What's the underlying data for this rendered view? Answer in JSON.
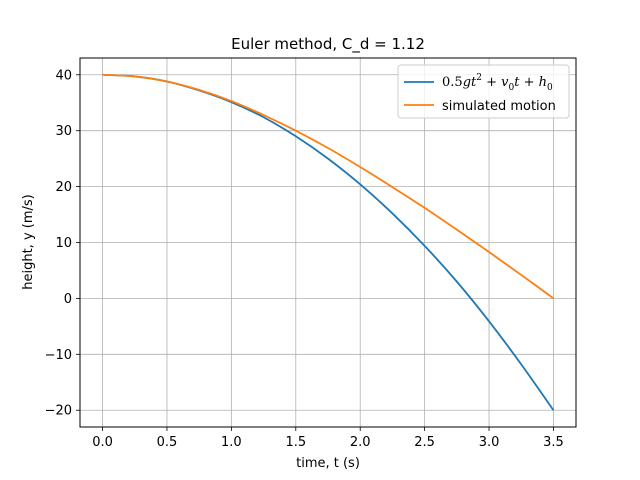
{
  "chart_data": {
    "type": "line",
    "title": "Euler method, C_d = 1.12",
    "xlabel": "time, t (s)",
    "ylabel": "height, y (m/s)",
    "xlim": [
      -0.175,
      3.675
    ],
    "ylim": [
      -23,
      43
    ],
    "xticks": [
      0.0,
      0.5,
      1.0,
      1.5,
      2.0,
      2.5,
      3.0,
      3.5
    ],
    "xtick_labels": [
      "0.0",
      "0.5",
      "1.0",
      "1.5",
      "2.0",
      "2.5",
      "3.0",
      "3.5"
    ],
    "yticks": [
      -20,
      -10,
      0,
      10,
      20,
      30,
      40
    ],
    "ytick_labels": [
      "−20",
      "−10",
      "0",
      "10",
      "20",
      "30",
      "40"
    ],
    "grid": true,
    "legend_position": "top-right",
    "series": [
      {
        "name": "0.5gt² + v₀t + h₀",
        "color": "#1f77b4",
        "x": [
          0.0,
          0.25,
          0.5,
          0.75,
          1.0,
          1.25,
          1.5,
          1.75,
          2.0,
          2.25,
          2.5,
          2.75,
          3.0,
          3.25,
          3.5
        ],
        "y": [
          40.0,
          39.7,
          38.8,
          37.2,
          35.1,
          32.4,
          29.0,
          25.0,
          20.4,
          15.2,
          9.4,
          3.0,
          -4.1,
          -11.8,
          -20.0
        ]
      },
      {
        "name": "simulated motion",
        "color": "#ff7f0e",
        "x": [
          0.0,
          0.25,
          0.5,
          0.75,
          1.0,
          1.25,
          1.5,
          1.75,
          2.0,
          2.25,
          2.5,
          2.75,
          3.0,
          3.25,
          3.5
        ],
        "y": [
          40.0,
          39.7,
          38.8,
          37.3,
          35.3,
          32.8,
          30.0,
          26.9,
          23.5,
          19.9,
          16.2,
          12.3,
          8.3,
          4.2,
          0.0
        ]
      }
    ]
  }
}
